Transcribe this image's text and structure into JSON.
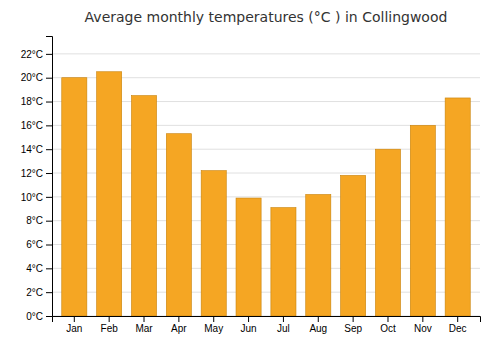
{
  "chart_data": {
    "type": "bar",
    "title": "Average monthly temperatures (°C ) in Collingwood",
    "categories": [
      "Jan",
      "Feb",
      "Mar",
      "Apr",
      "May",
      "Jun",
      "Jul",
      "Aug",
      "Sep",
      "Oct",
      "Nov",
      "Dec"
    ],
    "values": [
      20.0,
      20.5,
      18.5,
      15.3,
      12.2,
      9.9,
      9.1,
      10.2,
      11.8,
      14.0,
      16.0,
      18.3
    ],
    "color": "#F5A623",
    "ylim": [
      0,
      23.5
    ],
    "yticks": [
      {
        "value": 0,
        "label": "0°C"
      },
      {
        "value": 2,
        "label": "2°C"
      },
      {
        "value": 4,
        "label": "4°C"
      },
      {
        "value": 6,
        "label": "6°C"
      },
      {
        "value": 8,
        "label": "8°C"
      },
      {
        "value": 10,
        "label": "10°C"
      },
      {
        "value": 12,
        "label": "12°C"
      },
      {
        "value": 14,
        "label": "14°C"
      },
      {
        "value": 16,
        "label": "16°C"
      },
      {
        "value": 18,
        "label": "18°C"
      },
      {
        "value": 20,
        "label": "20°C"
      },
      {
        "value": 22,
        "label": "22°C"
      }
    ],
    "grid": true
  }
}
